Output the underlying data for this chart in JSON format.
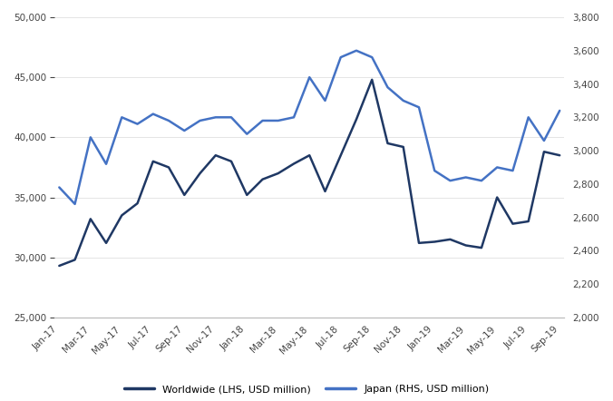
{
  "x_labels": [
    "Jan-17",
    "Mar-17",
    "May-17",
    "Jul-17",
    "Sep-17",
    "Nov-17",
    "Jan-18",
    "Mar-18",
    "May-18",
    "Jul-18",
    "Sep-18",
    "Nov-18",
    "Jan-19",
    "Mar-19",
    "May-19",
    "Jul-19",
    "Sep-19"
  ],
  "worldwide": [
    29300,
    29800,
    33200,
    31200,
    33500,
    34500,
    38000,
    37500,
    35200,
    37000,
    38500,
    38000,
    35200,
    36500,
    37000,
    37800,
    38500,
    35500,
    38500,
    41500,
    44800,
    39500,
    39200,
    31200,
    31300,
    31500,
    31000,
    30800,
    35000,
    32800,
    33000,
    38800,
    38500
  ],
  "japan_rhs": [
    2780,
    2680,
    3080,
    2920,
    3200,
    3160,
    3220,
    3180,
    3120,
    3180,
    3200,
    3200,
    3100,
    3180,
    3180,
    3200,
    3440,
    3300,
    3560,
    3600,
    3560,
    3380,
    3300,
    3260,
    2880,
    2820,
    2840,
    2820,
    2900,
    2880,
    3200,
    3060,
    3240
  ],
  "background_color": "#ffffff",
  "worldwide_color": "#1f3864",
  "japan_color": "#4472c4",
  "lhs_ylim": [
    25000,
    50000
  ],
  "rhs_ylim": [
    2000,
    3800
  ],
  "lhs_yticks": [
    25000,
    30000,
    35000,
    40000,
    45000,
    50000
  ],
  "rhs_yticks": [
    2000,
    2200,
    2400,
    2600,
    2800,
    3000,
    3200,
    3400,
    3600,
    3800
  ],
  "legend_worldwide": "Worldwide (LHS, USD million)",
  "legend_japan": "Japan (RHS, USD million)"
}
